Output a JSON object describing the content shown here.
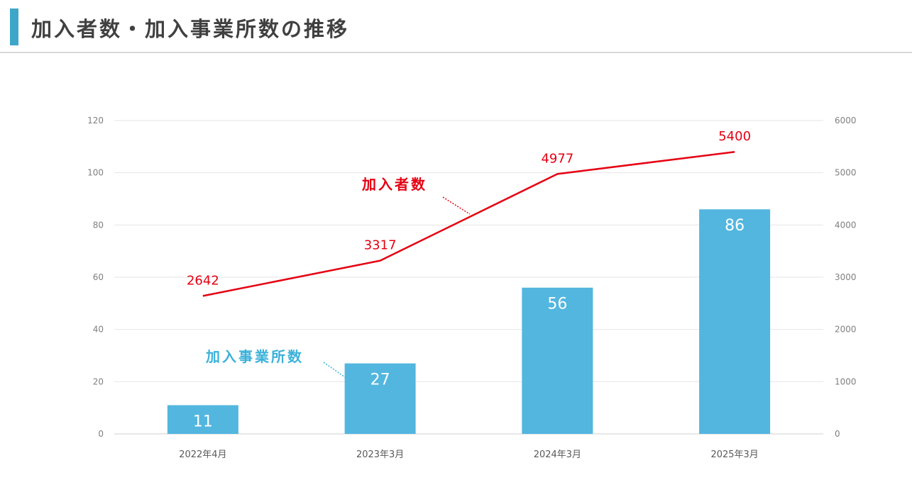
{
  "header": {
    "title": "加入者数・加入事業所数の推移",
    "accent_color": "#3ea6c8"
  },
  "chart_data": {
    "type": "bar",
    "categories": [
      "2022年4月",
      "2023年3月",
      "2024年3月",
      "2025年3月"
    ],
    "series": [
      {
        "name": "加入事業所数",
        "type": "bar",
        "axis": "left",
        "values": [
          11,
          27,
          56,
          86
        ],
        "color": "#52b6df"
      },
      {
        "name": "加入者数",
        "type": "line",
        "axis": "right",
        "values": [
          2642,
          3317,
          4977,
          5400
        ],
        "color": "#e60012"
      }
    ],
    "y_left": {
      "ylim": [
        0,
        120
      ],
      "ticks": [
        "0",
        "20",
        "40",
        "60",
        "80",
        "100",
        "120"
      ]
    },
    "y_right": {
      "ylim": [
        0,
        6000
      ],
      "ticks": [
        "0",
        "1000",
        "2000",
        "3000",
        "4000",
        "5000",
        "6000"
      ]
    },
    "grid": true,
    "legend": "none"
  }
}
